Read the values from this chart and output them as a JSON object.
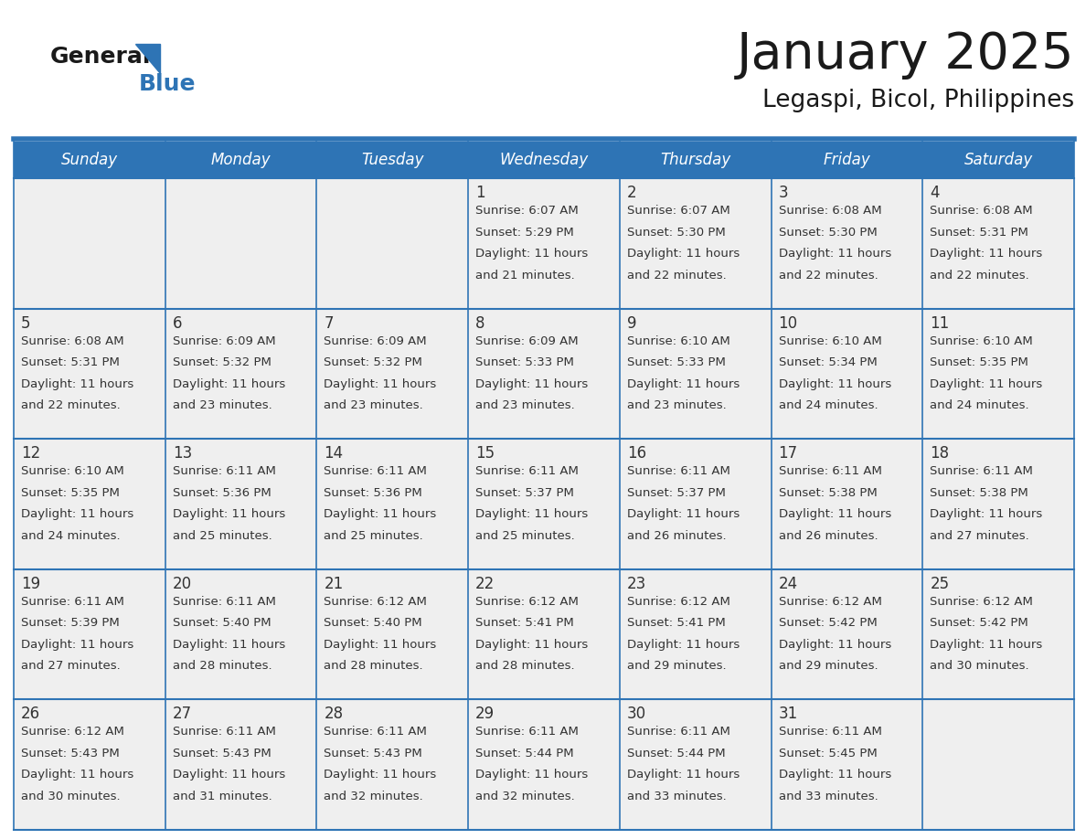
{
  "title": "January 2025",
  "subtitle": "Legaspi, Bicol, Philippines",
  "header_color": "#2E74B5",
  "header_text_color": "#FFFFFF",
  "day_names": [
    "Sunday",
    "Monday",
    "Tuesday",
    "Wednesday",
    "Thursday",
    "Friday",
    "Saturday"
  ],
  "bg_color": "#FFFFFF",
  "cell_bg": "#EFEFEF",
  "grid_line_color": "#2E74B5",
  "text_color": "#333333",
  "days": [
    {
      "date": 1,
      "col": 3,
      "row": 0,
      "sunrise": "6:07 AM",
      "sunset": "5:29 PM",
      "daylight": "11 hours and 21 minutes."
    },
    {
      "date": 2,
      "col": 4,
      "row": 0,
      "sunrise": "6:07 AM",
      "sunset": "5:30 PM",
      "daylight": "11 hours and 22 minutes."
    },
    {
      "date": 3,
      "col": 5,
      "row": 0,
      "sunrise": "6:08 AM",
      "sunset": "5:30 PM",
      "daylight": "11 hours and 22 minutes."
    },
    {
      "date": 4,
      "col": 6,
      "row": 0,
      "sunrise": "6:08 AM",
      "sunset": "5:31 PM",
      "daylight": "11 hours and 22 minutes."
    },
    {
      "date": 5,
      "col": 0,
      "row": 1,
      "sunrise": "6:08 AM",
      "sunset": "5:31 PM",
      "daylight": "11 hours and 22 minutes."
    },
    {
      "date": 6,
      "col": 1,
      "row": 1,
      "sunrise": "6:09 AM",
      "sunset": "5:32 PM",
      "daylight": "11 hours and 23 minutes."
    },
    {
      "date": 7,
      "col": 2,
      "row": 1,
      "sunrise": "6:09 AM",
      "sunset": "5:32 PM",
      "daylight": "11 hours and 23 minutes."
    },
    {
      "date": 8,
      "col": 3,
      "row": 1,
      "sunrise": "6:09 AM",
      "sunset": "5:33 PM",
      "daylight": "11 hours and 23 minutes."
    },
    {
      "date": 9,
      "col": 4,
      "row": 1,
      "sunrise": "6:10 AM",
      "sunset": "5:33 PM",
      "daylight": "11 hours and 23 minutes."
    },
    {
      "date": 10,
      "col": 5,
      "row": 1,
      "sunrise": "6:10 AM",
      "sunset": "5:34 PM",
      "daylight": "11 hours and 24 minutes."
    },
    {
      "date": 11,
      "col": 6,
      "row": 1,
      "sunrise": "6:10 AM",
      "sunset": "5:35 PM",
      "daylight": "11 hours and 24 minutes."
    },
    {
      "date": 12,
      "col": 0,
      "row": 2,
      "sunrise": "6:10 AM",
      "sunset": "5:35 PM",
      "daylight": "11 hours and 24 minutes."
    },
    {
      "date": 13,
      "col": 1,
      "row": 2,
      "sunrise": "6:11 AM",
      "sunset": "5:36 PM",
      "daylight": "11 hours and 25 minutes."
    },
    {
      "date": 14,
      "col": 2,
      "row": 2,
      "sunrise": "6:11 AM",
      "sunset": "5:36 PM",
      "daylight": "11 hours and 25 minutes."
    },
    {
      "date": 15,
      "col": 3,
      "row": 2,
      "sunrise": "6:11 AM",
      "sunset": "5:37 PM",
      "daylight": "11 hours and 25 minutes."
    },
    {
      "date": 16,
      "col": 4,
      "row": 2,
      "sunrise": "6:11 AM",
      "sunset": "5:37 PM",
      "daylight": "11 hours and 26 minutes."
    },
    {
      "date": 17,
      "col": 5,
      "row": 2,
      "sunrise": "6:11 AM",
      "sunset": "5:38 PM",
      "daylight": "11 hours and 26 minutes."
    },
    {
      "date": 18,
      "col": 6,
      "row": 2,
      "sunrise": "6:11 AM",
      "sunset": "5:38 PM",
      "daylight": "11 hours and 27 minutes."
    },
    {
      "date": 19,
      "col": 0,
      "row": 3,
      "sunrise": "6:11 AM",
      "sunset": "5:39 PM",
      "daylight": "11 hours and 27 minutes."
    },
    {
      "date": 20,
      "col": 1,
      "row": 3,
      "sunrise": "6:11 AM",
      "sunset": "5:40 PM",
      "daylight": "11 hours and 28 minutes."
    },
    {
      "date": 21,
      "col": 2,
      "row": 3,
      "sunrise": "6:12 AM",
      "sunset": "5:40 PM",
      "daylight": "11 hours and 28 minutes."
    },
    {
      "date": 22,
      "col": 3,
      "row": 3,
      "sunrise": "6:12 AM",
      "sunset": "5:41 PM",
      "daylight": "11 hours and 28 minutes."
    },
    {
      "date": 23,
      "col": 4,
      "row": 3,
      "sunrise": "6:12 AM",
      "sunset": "5:41 PM",
      "daylight": "11 hours and 29 minutes."
    },
    {
      "date": 24,
      "col": 5,
      "row": 3,
      "sunrise": "6:12 AM",
      "sunset": "5:42 PM",
      "daylight": "11 hours and 29 minutes."
    },
    {
      "date": 25,
      "col": 6,
      "row": 3,
      "sunrise": "6:12 AM",
      "sunset": "5:42 PM",
      "daylight": "11 hours and 30 minutes."
    },
    {
      "date": 26,
      "col": 0,
      "row": 4,
      "sunrise": "6:12 AM",
      "sunset": "5:43 PM",
      "daylight": "11 hours and 30 minutes."
    },
    {
      "date": 27,
      "col": 1,
      "row": 4,
      "sunrise": "6:11 AM",
      "sunset": "5:43 PM",
      "daylight": "11 hours and 31 minutes."
    },
    {
      "date": 28,
      "col": 2,
      "row": 4,
      "sunrise": "6:11 AM",
      "sunset": "5:43 PM",
      "daylight": "11 hours and 32 minutes."
    },
    {
      "date": 29,
      "col": 3,
      "row": 4,
      "sunrise": "6:11 AM",
      "sunset": "5:44 PM",
      "daylight": "11 hours and 32 minutes."
    },
    {
      "date": 30,
      "col": 4,
      "row": 4,
      "sunrise": "6:11 AM",
      "sunset": "5:44 PM",
      "daylight": "11 hours and 33 minutes."
    },
    {
      "date": 31,
      "col": 5,
      "row": 4,
      "sunrise": "6:11 AM",
      "sunset": "5:45 PM",
      "daylight": "11 hours and 33 minutes."
    }
  ]
}
